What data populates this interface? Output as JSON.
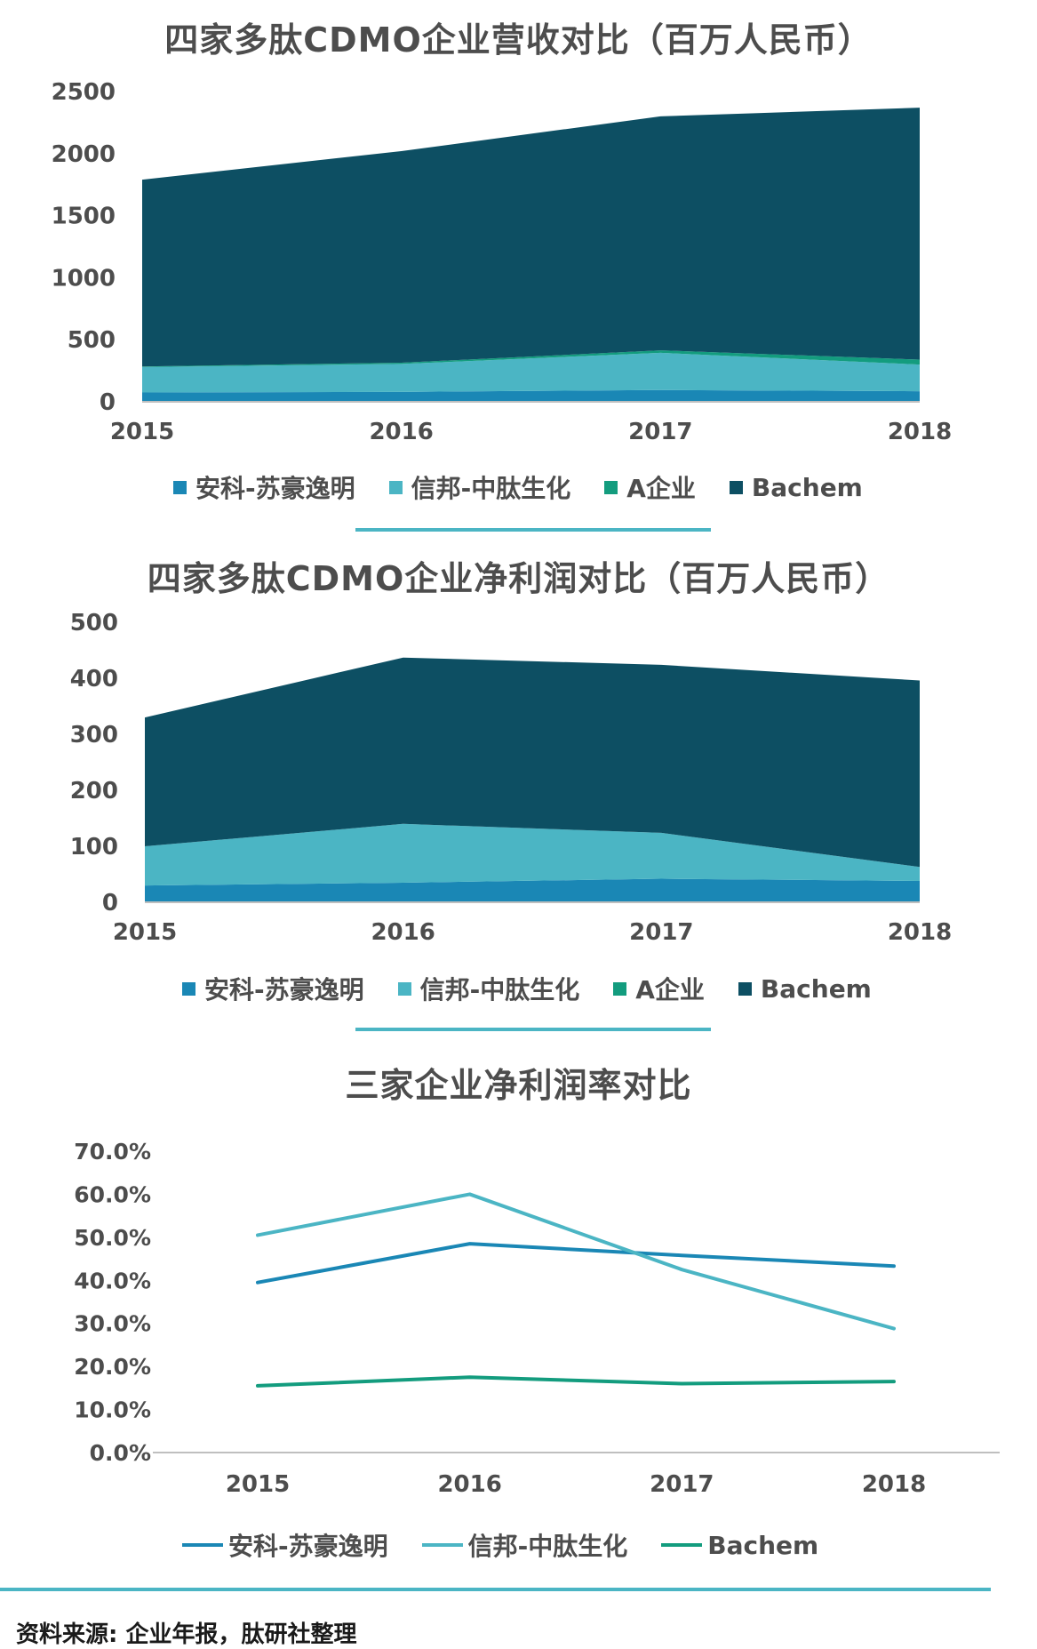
{
  "chart_data": [
    {
      "type": "area",
      "stacked": true,
      "title": "四家多肽CDMO企业营收对比（百万人民币）",
      "categories": [
        "2015",
        "2016",
        "2017",
        "2018"
      ],
      "y_ticks": [
        "0",
        "500",
        "1000",
        "1500",
        "2000",
        "2500"
      ],
      "ylim": [
        0,
        2500
      ],
      "series": [
        {
          "name": "安科-苏豪逸明",
          "color": "#1a87b5",
          "values": [
            75,
            80,
            95,
            85
          ]
        },
        {
          "name": "信邦-中肽生化",
          "color": "#4bb5c4",
          "values": [
            205,
            225,
            300,
            215
          ]
        },
        {
          "name": "A企业",
          "color": "#139c7e",
          "values": [
            5,
            10,
            20,
            40
          ]
        },
        {
          "name": "Bachem",
          "color": "#0d4f63",
          "values": [
            1505,
            1705,
            1885,
            2030
          ]
        }
      ],
      "legend_position": "bottom"
    },
    {
      "type": "area",
      "stacked": true,
      "title": "四家多肽CDMO企业净利润对比（百万人民币）",
      "categories": [
        "2015",
        "2016",
        "2017",
        "2018"
      ],
      "y_ticks": [
        "0",
        "100",
        "200",
        "300",
        "400",
        "500"
      ],
      "ylim": [
        0,
        500
      ],
      "series": [
        {
          "name": "安科-苏豪逸明",
          "color": "#1a87b5",
          "values": [
            30,
            35,
            42,
            38
          ]
        },
        {
          "name": "信邦-中肽生化",
          "color": "#4bb5c4",
          "values": [
            70,
            105,
            82,
            25
          ]
        },
        {
          "name": "A企业",
          "color": "#139c7e",
          "values": [
            0,
            0,
            0,
            0
          ]
        },
        {
          "name": "Bachem",
          "color": "#0d4f63",
          "values": [
            230,
            297,
            300,
            333
          ]
        }
      ],
      "legend_position": "bottom"
    },
    {
      "type": "line",
      "title": "三家企业净利润率对比",
      "categories": [
        "2015",
        "2016",
        "2017",
        "2018"
      ],
      "y_ticks": [
        "0.0%",
        "10.0%",
        "20.0%",
        "30.0%",
        "40.0%",
        "50.0%",
        "60.0%",
        "70.0%"
      ],
      "ylim": [
        0,
        70
      ],
      "series": [
        {
          "name": "安科-苏豪逸明",
          "color": "#1a87b5",
          "values": [
            39.5,
            48.5,
            45.8,
            43.3
          ]
        },
        {
          "name": "信邦-中肽生化",
          "color": "#4bb5c4",
          "values": [
            50.5,
            60.0,
            42.5,
            28.8
          ]
        },
        {
          "name": "Bachem",
          "color": "#139c7e",
          "values": [
            15.5,
            17.5,
            16.0,
            16.5
          ]
        }
      ],
      "legend_position": "bottom"
    }
  ],
  "source": "资料来源: 企业年报，肽研社整理"
}
